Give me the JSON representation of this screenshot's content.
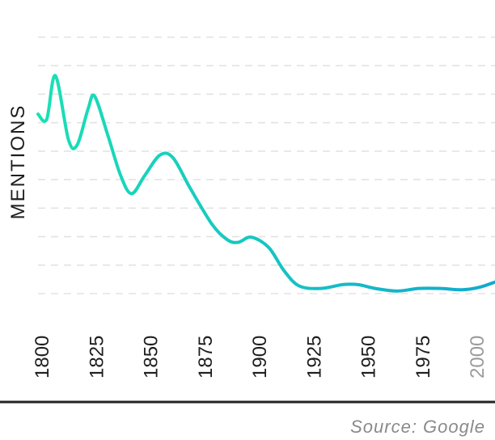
{
  "chart_data": {
    "type": "line",
    "title": "",
    "xlabel": "",
    "ylabel": "MENTIONS",
    "source": "Source: Google",
    "x_ticks": [
      "1800",
      "1825",
      "1850",
      "1875",
      "1900",
      "1925",
      "1950",
      "1975",
      "2000"
    ],
    "xlim": [
      1800,
      2010
    ],
    "ylim": [
      0,
      10
    ],
    "grid": true,
    "series": [
      {
        "color": "#1ae0b5",
        "color_end": "#12a9cf",
        "points": [
          [
            1800,
            7.0
          ],
          [
            1804,
            6.8
          ],
          [
            1808,
            8.5
          ],
          [
            1814,
            6.0
          ],
          [
            1818,
            5.8
          ],
          [
            1823,
            7.2
          ],
          [
            1826,
            7.7
          ],
          [
            1832,
            6.2
          ],
          [
            1838,
            4.6
          ],
          [
            1843,
            3.9
          ],
          [
            1849,
            4.6
          ],
          [
            1856,
            5.4
          ],
          [
            1862,
            5.3
          ],
          [
            1870,
            4.1
          ],
          [
            1880,
            2.7
          ],
          [
            1887,
            2.1
          ],
          [
            1892,
            2.0
          ],
          [
            1898,
            2.2
          ],
          [
            1906,
            1.8
          ],
          [
            1913,
            0.9
          ],
          [
            1920,
            0.3
          ],
          [
            1930,
            0.2
          ],
          [
            1940,
            0.35
          ],
          [
            1947,
            0.35
          ],
          [
            1955,
            0.2
          ],
          [
            1965,
            0.1
          ],
          [
            1975,
            0.2
          ],
          [
            1985,
            0.2
          ],
          [
            1995,
            0.15
          ],
          [
            2003,
            0.25
          ],
          [
            2010,
            0.45
          ]
        ]
      }
    ]
  }
}
